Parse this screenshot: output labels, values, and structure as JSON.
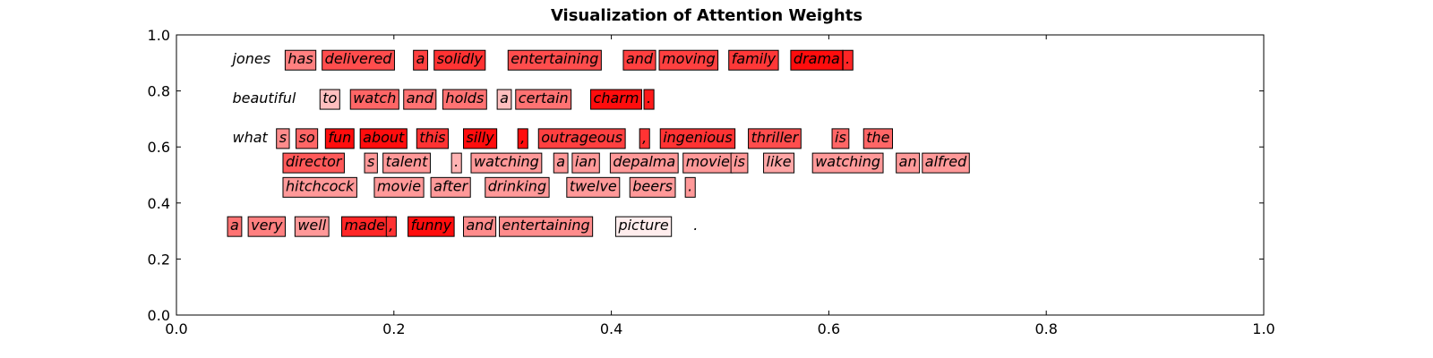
{
  "chart_data": {
    "type": "table",
    "title": "Visualization of Attention Weights",
    "xlim": [
      0,
      1
    ],
    "ylim": [
      0,
      1
    ],
    "x_ticks": [
      "0.0",
      "0.2",
      "0.4",
      "0.6",
      "0.8",
      "1.0"
    ],
    "y_ticks": [
      "0.0",
      "0.2",
      "0.4",
      "0.6",
      "0.8",
      "1.0"
    ],
    "highlight_color": "#ff0000",
    "tokens": [
      {
        "text": "jones",
        "x": 0.049,
        "y": 0.897,
        "weight": 0
      },
      {
        "text": "has",
        "x": 0.1,
        "y": 0.897,
        "weight": 0.5
      },
      {
        "text": "delivered",
        "x": 0.134,
        "y": 0.897,
        "weight": 0.7
      },
      {
        "text": "a",
        "x": 0.218,
        "y": 0.897,
        "weight": 0.75
      },
      {
        "text": "solidly",
        "x": 0.237,
        "y": 0.897,
        "weight": 0.8
      },
      {
        "text": "entertaining",
        "x": 0.305,
        "y": 0.897,
        "weight": 0.7
      },
      {
        "text": "and",
        "x": 0.411,
        "y": 0.897,
        "weight": 0.75
      },
      {
        "text": "moving",
        "x": 0.444,
        "y": 0.897,
        "weight": 0.75
      },
      {
        "text": "family",
        "x": 0.508,
        "y": 0.897,
        "weight": 0.78
      },
      {
        "text": "drama",
        "x": 0.565,
        "y": 0.897,
        "weight": 0.95
      },
      {
        "text": ".",
        "x": 0.613,
        "y": 0.897,
        "weight": 0.85
      },
      {
        "text": "beautiful",
        "x": 0.049,
        "y": 0.757,
        "weight": 0
      },
      {
        "text": "to",
        "x": 0.132,
        "y": 0.757,
        "weight": 0.25
      },
      {
        "text": "watch",
        "x": 0.16,
        "y": 0.757,
        "weight": 0.6
      },
      {
        "text": "and",
        "x": 0.209,
        "y": 0.757,
        "weight": 0.55
      },
      {
        "text": "holds",
        "x": 0.245,
        "y": 0.757,
        "weight": 0.55
      },
      {
        "text": "a",
        "x": 0.295,
        "y": 0.757,
        "weight": 0.25
      },
      {
        "text": "certain",
        "x": 0.312,
        "y": 0.757,
        "weight": 0.55
      },
      {
        "text": "charm",
        "x": 0.381,
        "y": 0.757,
        "weight": 0.95
      },
      {
        "text": ".",
        "x": 0.43,
        "y": 0.757,
        "weight": 0.9
      },
      {
        "text": "what",
        "x": 0.049,
        "y": 0.617,
        "weight": 0
      },
      {
        "text": "s",
        "x": 0.092,
        "y": 0.617,
        "weight": 0.45
      },
      {
        "text": "so",
        "x": 0.11,
        "y": 0.617,
        "weight": 0.6
      },
      {
        "text": "fun",
        "x": 0.137,
        "y": 0.617,
        "weight": 0.95
      },
      {
        "text": "about",
        "x": 0.169,
        "y": 0.617,
        "weight": 0.95
      },
      {
        "text": "this",
        "x": 0.221,
        "y": 0.617,
        "weight": 0.8
      },
      {
        "text": "silly",
        "x": 0.264,
        "y": 0.617,
        "weight": 0.95
      },
      {
        "text": ",",
        "x": 0.314,
        "y": 0.617,
        "weight": 0.95
      },
      {
        "text": "outrageous",
        "x": 0.333,
        "y": 0.617,
        "weight": 0.75
      },
      {
        "text": ",",
        "x": 0.426,
        "y": 0.617,
        "weight": 0.8
      },
      {
        "text": "ingenious",
        "x": 0.445,
        "y": 0.617,
        "weight": 0.8
      },
      {
        "text": "thriller",
        "x": 0.526,
        "y": 0.617,
        "weight": 0.7
      },
      {
        "text": "is",
        "x": 0.603,
        "y": 0.617,
        "weight": 0.6
      },
      {
        "text": "the",
        "x": 0.632,
        "y": 0.617,
        "weight": 0.6
      },
      {
        "text": "director",
        "x": 0.098,
        "y": 0.53,
        "weight": 0.65
      },
      {
        "text": "s",
        "x": 0.173,
        "y": 0.53,
        "weight": 0.4
      },
      {
        "text": "talent",
        "x": 0.19,
        "y": 0.53,
        "weight": 0.4
      },
      {
        "text": ".",
        "x": 0.253,
        "y": 0.53,
        "weight": 0.3
      },
      {
        "text": "watching",
        "x": 0.271,
        "y": 0.53,
        "weight": 0.4
      },
      {
        "text": "a",
        "x": 0.347,
        "y": 0.53,
        "weight": 0.4
      },
      {
        "text": "ian",
        "x": 0.364,
        "y": 0.53,
        "weight": 0.4
      },
      {
        "text": "depalma",
        "x": 0.399,
        "y": 0.53,
        "weight": 0.4
      },
      {
        "text": "movie",
        "x": 0.466,
        "y": 0.53,
        "weight": 0.4
      },
      {
        "text": "is",
        "x": 0.51,
        "y": 0.53,
        "weight": 0.4
      },
      {
        "text": "like",
        "x": 0.54,
        "y": 0.53,
        "weight": 0.35
      },
      {
        "text": "watching",
        "x": 0.585,
        "y": 0.53,
        "weight": 0.4
      },
      {
        "text": "an",
        "x": 0.662,
        "y": 0.53,
        "weight": 0.4
      },
      {
        "text": "alfred",
        "x": 0.686,
        "y": 0.53,
        "weight": 0.4
      },
      {
        "text": "hitchcock",
        "x": 0.098,
        "y": 0.443,
        "weight": 0.4
      },
      {
        "text": "movie",
        "x": 0.182,
        "y": 0.443,
        "weight": 0.4
      },
      {
        "text": "after",
        "x": 0.234,
        "y": 0.443,
        "weight": 0.4
      },
      {
        "text": "drinking",
        "x": 0.284,
        "y": 0.443,
        "weight": 0.4
      },
      {
        "text": "twelve",
        "x": 0.359,
        "y": 0.443,
        "weight": 0.4
      },
      {
        "text": "beers",
        "x": 0.417,
        "y": 0.443,
        "weight": 0.4
      },
      {
        "text": ".",
        "x": 0.468,
        "y": 0.443,
        "weight": 0.4
      },
      {
        "text": "a",
        "x": 0.047,
        "y": 0.303,
        "weight": 0.55
      },
      {
        "text": "very",
        "x": 0.066,
        "y": 0.303,
        "weight": 0.5
      },
      {
        "text": "well",
        "x": 0.109,
        "y": 0.303,
        "weight": 0.4
      },
      {
        "text": "made",
        "x": 0.152,
        "y": 0.303,
        "weight": 0.85
      },
      {
        "text": ",",
        "x": 0.193,
        "y": 0.303,
        "weight": 0.8
      },
      {
        "text": "funny",
        "x": 0.213,
        "y": 0.303,
        "weight": 0.95
      },
      {
        "text": "and",
        "x": 0.264,
        "y": 0.303,
        "weight": 0.45
      },
      {
        "text": "entertaining",
        "x": 0.297,
        "y": 0.303,
        "weight": 0.45
      },
      {
        "text": "picture",
        "x": 0.404,
        "y": 0.303,
        "weight": 0.07
      },
      {
        "text": ".",
        "x": 0.473,
        "y": 0.303,
        "weight": 0
      }
    ]
  }
}
